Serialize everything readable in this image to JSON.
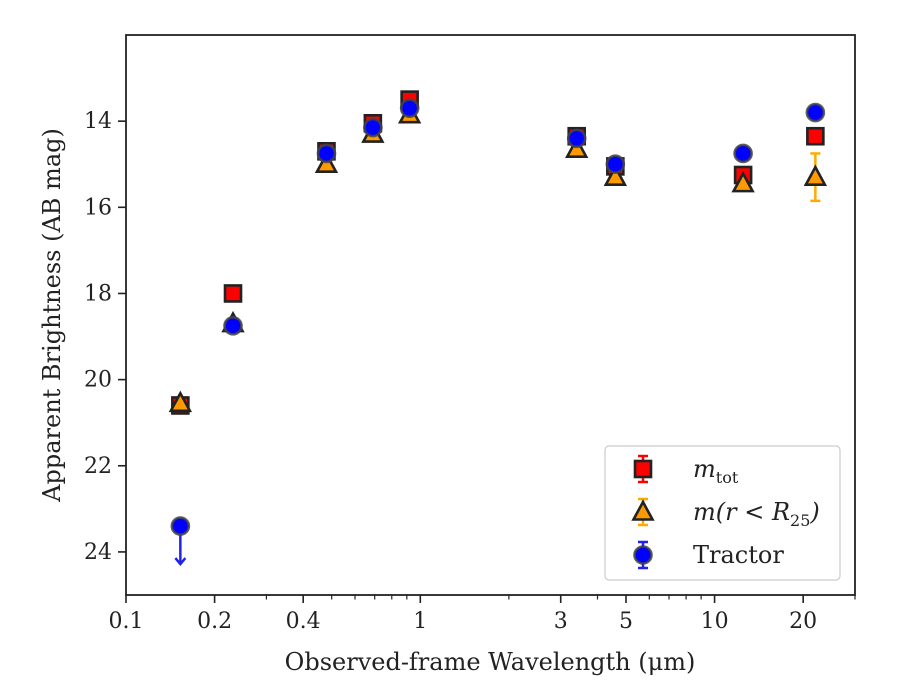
{
  "chart_data": {
    "type": "scatter",
    "xlabel": "Observed-frame Wavelength (μm)",
    "ylabel": "Apparent Brightness (AB mag)",
    "x_scale": "log",
    "xlim": [
      0.1,
      30
    ],
    "ylim": [
      25,
      12
    ],
    "y_inverted": true,
    "x_ticks": [
      {
        "value": 0.1,
        "label": "0.1"
      },
      {
        "value": 0.2,
        "label": "0.2"
      },
      {
        "value": 0.4,
        "label": "0.4"
      },
      {
        "value": 1,
        "label": "1"
      },
      {
        "value": 3,
        "label": "3"
      },
      {
        "value": 5,
        "label": "5"
      },
      {
        "value": 10,
        "label": "10"
      },
      {
        "value": 20,
        "label": "20"
      }
    ],
    "y_ticks": [
      {
        "value": 14,
        "label": "14"
      },
      {
        "value": 16,
        "label": "16"
      },
      {
        "value": 18,
        "label": "18"
      },
      {
        "value": 20,
        "label": "20"
      },
      {
        "value": 22,
        "label": "22"
      },
      {
        "value": 24,
        "label": "24"
      }
    ],
    "grid": false,
    "legend_position": "bottom-right",
    "series": [
      {
        "key": "mtot",
        "name": "m_tot",
        "legend_main": "m",
        "legend_sub": "tot",
        "marker": "square",
        "color": "#ff0000",
        "edge": "#222222",
        "errcolor": "#ff0000",
        "points": [
          {
            "x": 0.153,
            "y": 20.6,
            "err": 0
          },
          {
            "x": 0.231,
            "y": 18.0,
            "err": 0
          },
          {
            "x": 0.48,
            "y": 14.7,
            "err": 0
          },
          {
            "x": 0.69,
            "y": 14.05,
            "err": 0
          },
          {
            "x": 0.92,
            "y": 13.5,
            "err": 0.12
          },
          {
            "x": 3.4,
            "y": 14.35,
            "err": 0
          },
          {
            "x": 4.6,
            "y": 15.05,
            "err": 0
          },
          {
            "x": 12.5,
            "y": 15.25,
            "err": 0
          },
          {
            "x": 22.0,
            "y": 14.35,
            "err": 0
          }
        ]
      },
      {
        "key": "mr25",
        "name": "m(r<R25)",
        "legend_main": "m(r < R",
        "legend_sub": "25",
        "legend_close": ")",
        "marker": "triangle",
        "color": "#ff9900",
        "edge": "#222222",
        "errcolor": "#ffaa00",
        "points": [
          {
            "x": 0.153,
            "y": 20.55,
            "err": 0
          },
          {
            "x": 0.231,
            "y": 18.7,
            "err": 0
          },
          {
            "x": 0.48,
            "y": 15.0,
            "err": 0
          },
          {
            "x": 0.69,
            "y": 14.3,
            "err": 0
          },
          {
            "x": 0.92,
            "y": 13.85,
            "err": 0
          },
          {
            "x": 3.4,
            "y": 14.65,
            "err": 0
          },
          {
            "x": 4.6,
            "y": 15.3,
            "err": 0
          },
          {
            "x": 12.5,
            "y": 15.45,
            "err": 0
          },
          {
            "x": 22.0,
            "y": 15.3,
            "err": 0.55
          }
        ]
      },
      {
        "key": "tractor",
        "name": "Tractor",
        "legend_main": "Tractor",
        "marker": "circle",
        "color": "#0000ff",
        "edge": "#444444",
        "errcolor": "#2222ee",
        "points": [
          {
            "x": 0.153,
            "y": 23.4,
            "err": 0,
            "upper_limit": true
          },
          {
            "x": 0.231,
            "y": 18.75,
            "err": 0
          },
          {
            "x": 0.48,
            "y": 14.75,
            "err": 0
          },
          {
            "x": 0.69,
            "y": 14.15,
            "err": 0
          },
          {
            "x": 0.92,
            "y": 13.7,
            "err": 0.12
          },
          {
            "x": 3.4,
            "y": 14.4,
            "err": 0
          },
          {
            "x": 4.6,
            "y": 15.0,
            "err": 0
          },
          {
            "x": 12.5,
            "y": 14.75,
            "err": 0
          },
          {
            "x": 22.0,
            "y": 13.8,
            "err": 0.08
          }
        ]
      }
    ]
  }
}
